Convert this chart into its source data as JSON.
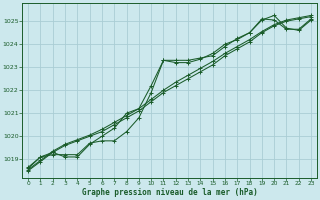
{
  "title": "Graphe pression niveau de la mer (hPa)",
  "background_color": "#cce8ed",
  "grid_color": "#aacdd4",
  "line_color": "#1a5c2a",
  "xlim": [
    -0.5,
    23.5
  ],
  "ylim": [
    1018.2,
    1025.8
  ],
  "xticks": [
    0,
    1,
    2,
    3,
    4,
    5,
    6,
    7,
    8,
    9,
    10,
    11,
    12,
    13,
    14,
    15,
    16,
    17,
    18,
    19,
    20,
    21,
    22,
    23
  ],
  "yticks": [
    1019,
    1020,
    1021,
    1022,
    1023,
    1024,
    1025
  ],
  "series": [
    {
      "x": [
        0,
        1,
        2,
        3,
        4,
        5,
        6,
        7,
        8,
        9,
        10,
        11,
        12,
        13,
        14,
        15,
        16,
        17,
        18,
        19,
        20,
        21,
        22,
        23
      ],
      "y": [
        1018.5,
        1018.9,
        1019.3,
        1019.6,
        1019.8,
        1020.0,
        1020.2,
        1020.5,
        1020.8,
        1021.1,
        1021.5,
        1021.9,
        1022.2,
        1022.5,
        1022.8,
        1023.1,
        1023.5,
        1023.8,
        1024.1,
        1024.5,
        1024.8,
        1025.0,
        1025.1,
        1025.2
      ]
    },
    {
      "x": [
        0,
        1,
        2,
        3,
        4,
        5,
        6,
        7,
        8,
        9,
        10,
        11,
        12,
        13,
        14,
        15,
        16,
        17,
        18,
        19,
        20,
        21,
        22,
        23
      ],
      "y": [
        1018.55,
        1018.95,
        1019.35,
        1019.65,
        1019.85,
        1020.05,
        1020.3,
        1020.6,
        1020.9,
        1021.2,
        1021.6,
        1022.0,
        1022.35,
        1022.65,
        1022.95,
        1023.25,
        1023.6,
        1023.9,
        1024.2,
        1024.55,
        1024.85,
        1025.05,
        1025.15,
        1025.25
      ]
    },
    {
      "x": [
        0,
        1,
        2,
        3,
        4,
        5,
        6,
        7,
        8,
        9,
        10,
        11,
        12,
        13,
        14,
        15,
        16,
        17,
        18,
        19,
        20,
        21,
        22,
        23
      ],
      "y": [
        1018.6,
        1019.1,
        1019.2,
        1019.2,
        1019.2,
        1019.7,
        1019.8,
        1019.8,
        1020.2,
        1020.8,
        1021.9,
        1023.3,
        1023.3,
        1023.3,
        1023.4,
        1023.5,
        1023.9,
        1024.25,
        1024.5,
        1025.05,
        1025.25,
        1024.7,
        1024.6,
        1025.05
      ]
    },
    {
      "x": [
        0,
        1,
        2,
        3,
        4,
        5,
        6,
        7,
        8,
        9,
        10,
        11,
        12,
        13,
        14,
        15,
        16,
        17,
        18,
        19,
        20,
        21,
        22,
        23
      ],
      "y": [
        1018.65,
        1019.1,
        1019.3,
        1019.1,
        1019.1,
        1019.65,
        1020.0,
        1020.35,
        1021.0,
        1021.2,
        1022.2,
        1023.3,
        1023.2,
        1023.2,
        1023.35,
        1023.6,
        1024.0,
        1024.2,
        1024.5,
        1025.1,
        1025.05,
        1024.65,
        1024.65,
        1025.1
      ]
    }
  ]
}
